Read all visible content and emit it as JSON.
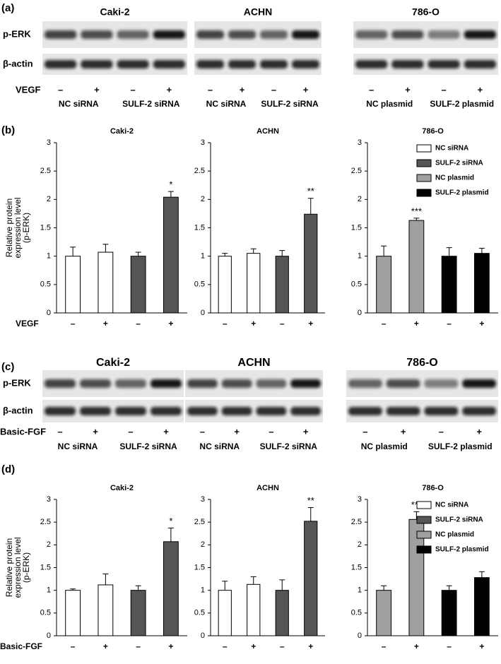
{
  "figure": {
    "blot_panels": [
      {
        "label": "(a)",
        "treatment": "VEGF",
        "row_labels": [
          "p-ERK",
          "β-actin"
        ],
        "groups": [
          {
            "title": "Caki-2",
            "signs": [
              "–",
              "+",
              "–",
              "+"
            ],
            "conditions": [
              "NC siRNA",
              "SULF-2 siRNA"
            ]
          },
          {
            "title": "ACHN",
            "signs": [
              "–",
              "+",
              "–",
              "+"
            ],
            "conditions": [
              "NC siRNA",
              "SULF-2 siRNA"
            ]
          },
          {
            "title": "786-O",
            "signs": [
              "–",
              "+",
              "–",
              "+"
            ],
            "conditions": [
              "NC plasmid",
              "SULF-2 plasmid"
            ]
          }
        ]
      },
      {
        "label": "(c)",
        "treatment": "Basic-FGF",
        "row_labels": [
          "p-ERK",
          "β-actin"
        ],
        "groups": [
          {
            "title": "Caki-2",
            "signs": [
              "–",
              "+",
              "–",
              "+"
            ],
            "conditions": [
              "NC siRNA",
              "SULF-2 siRNA"
            ]
          },
          {
            "title": "ACHN",
            "signs": [
              "–",
              "+",
              "–",
              "+"
            ],
            "conditions": [
              "NC siRNA",
              "SULF-2 siRNA"
            ]
          },
          {
            "title": "786-O",
            "signs": [
              "–",
              "+",
              "–",
              "+"
            ],
            "conditions": [
              "NC plasmid",
              "SULF-2 plasmid"
            ]
          }
        ]
      }
    ],
    "chart_panels": [
      {
        "label": "(b)",
        "treatment": "VEGF"
      },
      {
        "label": "(d)",
        "treatment": "Basic-FGF"
      }
    ]
  },
  "chart_data": [
    {
      "type": "bar",
      "title": "Caki-2",
      "ylabel": [
        "Relative protein",
        "expression level",
        "(p-ERK)"
      ],
      "categories": [
        "–",
        "+",
        "–",
        "+"
      ],
      "values": [
        1,
        1.07,
        1,
        2.04
      ],
      "errors": [
        0.16,
        0.14,
        0.07,
        0.1
      ],
      "significance": [
        null,
        null,
        null,
        "*"
      ],
      "colors": [
        "#ffffff",
        "#ffffff",
        "#555555",
        "#555555"
      ],
      "ylim": [
        0,
        3
      ],
      "yticks": [
        0,
        0.5,
        1,
        1.5,
        2,
        2.5,
        3
      ]
    },
    {
      "type": "bar",
      "title": "ACHN",
      "categories": [
        "–",
        "+",
        "–",
        "+"
      ],
      "values": [
        1,
        1.05,
        1,
        1.74
      ],
      "errors": [
        0.05,
        0.08,
        0.1,
        0.28
      ],
      "significance": [
        null,
        null,
        null,
        "**"
      ],
      "colors": [
        "#ffffff",
        "#ffffff",
        "#555555",
        "#555555"
      ],
      "ylim": [
        0,
        3
      ],
      "yticks": [
        0,
        0.5,
        1,
        1.5,
        2,
        2.5,
        3
      ]
    },
    {
      "type": "bar",
      "title": "786-O",
      "categories": [
        "–",
        "+",
        "–",
        "+"
      ],
      "values": [
        1,
        1.63,
        1,
        1.05
      ],
      "errors": [
        0.18,
        0.04,
        0.15,
        0.09
      ],
      "significance": [
        null,
        "***",
        null,
        null
      ],
      "colors": [
        "#a0a0a0",
        "#a0a0a0",
        "#000000",
        "#000000"
      ],
      "legend": {
        "names": [
          "NC siRNA",
          "SULF-2 siRNA",
          "NC plasmid",
          "SULF-2 plasmid"
        ],
        "colors": [
          "#ffffff",
          "#555555",
          "#a0a0a0",
          "#000000"
        ]
      },
      "ylim": [
        0,
        3
      ],
      "yticks": [
        0,
        0.5,
        1,
        1.5,
        2,
        2.5,
        3
      ]
    },
    {
      "type": "bar",
      "title": "Caki-2",
      "ylabel": [
        "Relative protein",
        "expression level",
        "(p-ERK)"
      ],
      "categories": [
        "–",
        "+",
        "–",
        "+"
      ],
      "values": [
        1,
        1.12,
        1,
        2.07
      ],
      "errors": [
        0.03,
        0.24,
        0.1,
        0.3
      ],
      "significance": [
        null,
        null,
        null,
        "*"
      ],
      "colors": [
        "#ffffff",
        "#ffffff",
        "#555555",
        "#555555"
      ],
      "ylim": [
        0,
        3
      ],
      "yticks": [
        0,
        0.5,
        1,
        1.5,
        2,
        2.5,
        3
      ]
    },
    {
      "type": "bar",
      "title": "ACHN",
      "categories": [
        "–",
        "+",
        "–",
        "+"
      ],
      "values": [
        1,
        1.13,
        1,
        2.52
      ],
      "errors": [
        0.2,
        0.17,
        0.23,
        0.3
      ],
      "significance": [
        null,
        null,
        null,
        "**"
      ],
      "colors": [
        "#ffffff",
        "#ffffff",
        "#555555",
        "#555555"
      ],
      "ylim": [
        0,
        3
      ],
      "yticks": [
        0,
        0.5,
        1,
        1.5,
        2,
        2.5,
        3
      ]
    },
    {
      "type": "bar",
      "title": "786-O",
      "categories": [
        "–",
        "+",
        "–",
        "+"
      ],
      "values": [
        1,
        2.56,
        1,
        1.28
      ],
      "errors": [
        0.1,
        0.17,
        0.1,
        0.13
      ],
      "significance": [
        null,
        "***",
        null,
        null
      ],
      "colors": [
        "#a0a0a0",
        "#a0a0a0",
        "#000000",
        "#000000"
      ],
      "legend": {
        "names": [
          "NC siRNA",
          "SULF-2 siRNA",
          "NC plasmid",
          "SULF-2 plasmid"
        ],
        "colors": [
          "#ffffff",
          "#555555",
          "#a0a0a0",
          "#000000"
        ]
      },
      "ylim": [
        0,
        3
      ],
      "yticks": [
        0,
        0.5,
        1,
        1.5,
        2,
        2.5,
        3
      ]
    }
  ]
}
